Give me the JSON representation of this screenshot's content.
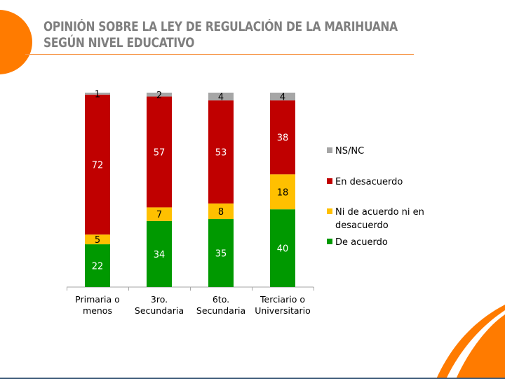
{
  "slide": {
    "title_line1": "OPINIÓN SOBRE LA LEY DE REGULACIÓN DE LA MARIHUANA",
    "title_line2": "SEGÚN NIVEL EDUCATIVO",
    "accent_color": "#ff7b00"
  },
  "chart_data": {
    "type": "bar",
    "stacked": true,
    "title": "OPINIÓN SOBRE LA LEY DE REGULACIÓN DE LA MARIHUANA SEGÚN NIVEL EDUCATIVO",
    "xlabel": "",
    "ylabel": "",
    "ylim": [
      0,
      100
    ],
    "grid": false,
    "legend_position": "right",
    "categories": [
      [
        "Primaria o",
        "menos"
      ],
      [
        "3ro.",
        "Secundaria"
      ],
      [
        "6to.",
        "Secundaria"
      ],
      [
        "Terciario o",
        "Universitario"
      ]
    ],
    "series": [
      {
        "name": "De acuerdo",
        "color": "#009900",
        "label_color": "#ffffff",
        "values": [
          22,
          34,
          35,
          40
        ]
      },
      {
        "name": "Ni de acuerdo ni en desacuerdo",
        "color": "#ffc000",
        "label_color": "#000000",
        "values": [
          5,
          7,
          8,
          18
        ]
      },
      {
        "name": "En desacuerdo",
        "color": "#c00000",
        "label_color": "#ffffff",
        "values": [
          72,
          57,
          53,
          38
        ]
      },
      {
        "name": "NS/NC",
        "color": "#a6a6a6",
        "label_color": "#000000",
        "values": [
          1,
          2,
          4,
          4
        ]
      }
    ],
    "legend": [
      {
        "name": "NS/NC",
        "color": "#a6a6a6",
        "lines": [
          "NS/NC"
        ]
      },
      {
        "name": "En desacuerdo",
        "color": "#c00000",
        "lines": [
          "En desacuerdo"
        ]
      },
      {
        "name": "Ni de acuerdo ni en desacuerdo",
        "color": "#ffc000",
        "lines": [
          "Ni de acuerdo ni en",
          "desacuerdo"
        ]
      },
      {
        "name": "De acuerdo",
        "color": "#009900",
        "lines": [
          "De acuerdo"
        ]
      }
    ]
  }
}
